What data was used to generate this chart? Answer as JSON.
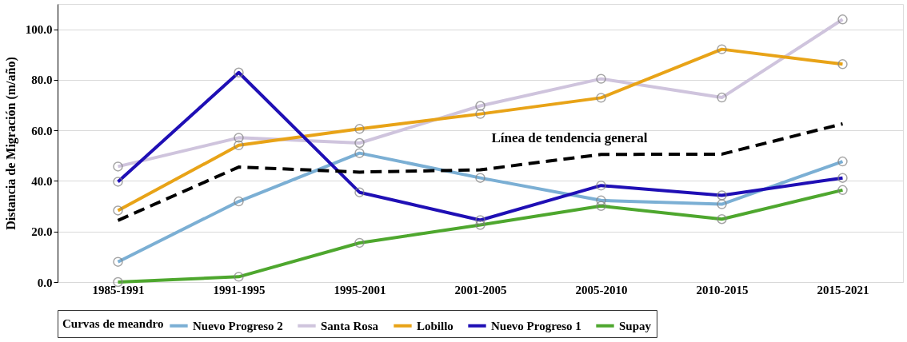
{
  "chart_data": {
    "type": "line",
    "ylabel": "Distancia de Migración  (m/año)",
    "legend_title": "Curvas de meandro",
    "legend": "bottom",
    "grid": "y",
    "marker": "circle",
    "line_style": "solid",
    "categories": [
      "1985-1991",
      "1991-1995",
      "1995-2001",
      "2001-2005",
      "2005-2010",
      "2010-2015",
      "2015-2021"
    ],
    "ylim": [
      0,
      110
    ],
    "yticks": [
      {
        "value": 0,
        "label": "0.0"
      },
      {
        "value": 20,
        "label": "20.0"
      },
      {
        "value": 40,
        "label": "40.0"
      },
      {
        "value": 60,
        "label": "60.0"
      },
      {
        "value": 80,
        "label": "80.0"
      },
      {
        "value": 100,
        "label": "100.0"
      }
    ],
    "series": [
      {
        "name": "Nuevo Progreso 2",
        "color": "#7bafd4",
        "values": [
          8.0,
          31.9,
          51.0,
          41.2,
          32.3,
          30.8,
          47.7
        ]
      },
      {
        "name": "Santa Rosa",
        "color": "#cfc4dd",
        "values": [
          45.7,
          57.1,
          55.0,
          69.7,
          80.4,
          73.0,
          103.9
        ]
      },
      {
        "name": "Lobillo",
        "color": "#e8a317",
        "values": [
          28.3,
          54.1,
          60.6,
          66.5,
          72.9,
          92.1,
          86.2
        ]
      },
      {
        "name": "Nuevo Progreso 1",
        "color": "#1f0fb5",
        "values": [
          39.7,
          82.9,
          35.5,
          24.5,
          38.2,
          34.3,
          41.2
        ]
      },
      {
        "name": "Supay",
        "color": "#4ea72e",
        "values": [
          0.0,
          2.1,
          15.5,
          22.6,
          30.1,
          24.9,
          36.4
        ]
      },
      {
        "color": "#000000",
        "line_style": "dashed",
        "marker": "none",
        "values": [
          24.4,
          45.5,
          43.5,
          44.4,
          50.5,
          50.6,
          62.6
        ]
      }
    ],
    "annotations": [
      "Línea de tendencia general"
    ]
  }
}
